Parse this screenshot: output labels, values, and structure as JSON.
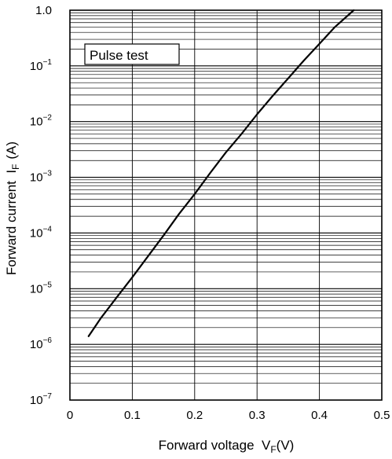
{
  "chart_data": {
    "type": "line",
    "title": "",
    "xlabel": "Forward voltage  V",
    "xlabel_sub": "F",
    "xlabel_unit": "(V)",
    "ylabel": "Forward current  I",
    "ylabel_sub": "F",
    "ylabel_unit": "(A)",
    "xlim": [
      0,
      0.5
    ],
    "ylim": [
      1e-07,
      1.0
    ],
    "yscale": "log",
    "grid": true,
    "x_ticks": [
      0,
      0.1,
      0.2,
      0.3,
      0.4,
      0.5
    ],
    "x_tick_labels": [
      "0",
      "0.1",
      "0.2",
      "0.3",
      "0.4",
      "0.5"
    ],
    "y_ticks": [
      {
        "value": 1e-07,
        "base": "10",
        "exp": "−7"
      },
      {
        "value": 1e-06,
        "base": "10",
        "exp": "−6"
      },
      {
        "value": 1e-05,
        "base": "10",
        "exp": "−5"
      },
      {
        "value": 0.0001,
        "base": "10",
        "exp": "−4"
      },
      {
        "value": 0.001,
        "base": "10",
        "exp": "−3"
      },
      {
        "value": 0.01,
        "base": "10",
        "exp": "−2"
      },
      {
        "value": 0.1,
        "base": "10",
        "exp": "−1"
      },
      {
        "value": 1.0,
        "base": "1.0",
        "exp": ""
      }
    ],
    "annotation": "Pulse test",
    "series": [
      {
        "x": [
          0.03,
          0.05,
          0.075,
          0.1,
          0.125,
          0.15,
          0.175,
          0.2,
          0.225,
          0.25,
          0.275,
          0.3,
          0.325,
          0.35,
          0.375,
          0.4,
          0.425,
          0.455
        ],
        "y": [
          1.4e-06,
          3e-06,
          7e-06,
          1.6e-05,
          3.8e-05,
          9e-05,
          0.00022,
          0.0005,
          0.0012,
          0.0028,
          0.006,
          0.0135,
          0.029,
          0.06,
          0.125,
          0.25,
          0.5,
          1.0
        ]
      }
    ]
  }
}
